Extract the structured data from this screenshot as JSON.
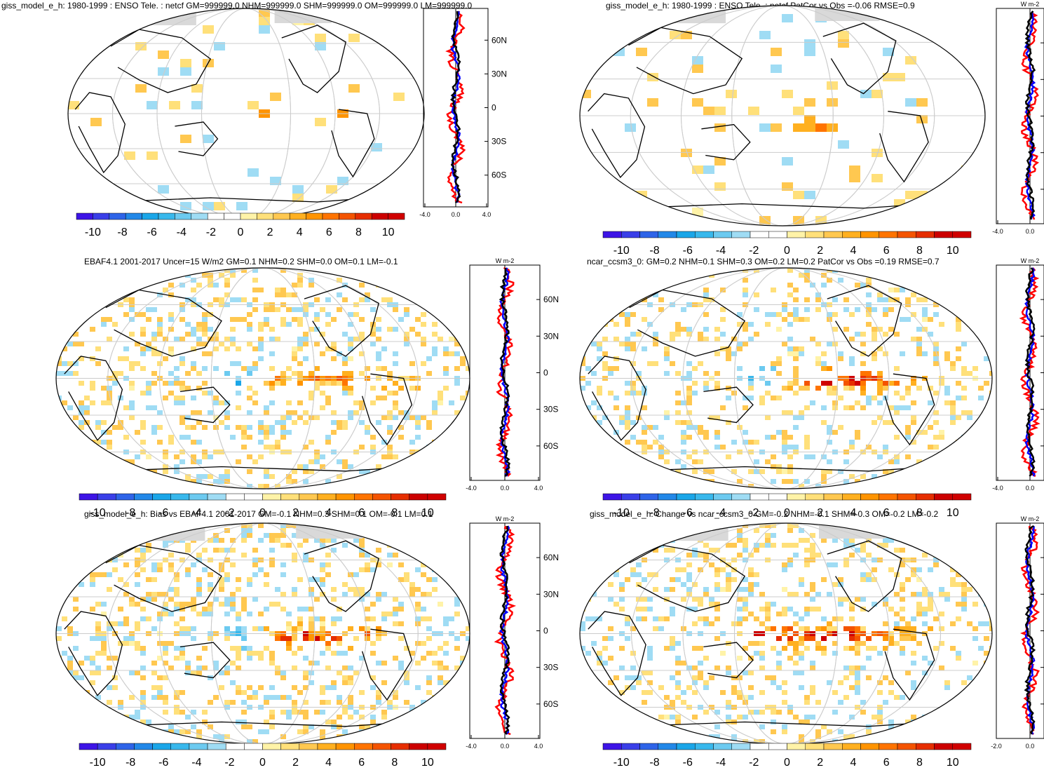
{
  "colorbar": {
    "colors": [
      "#3d14e6",
      "#3a3fe8",
      "#2e64e8",
      "#2288e8",
      "#1aa6e8",
      "#38b8ec",
      "#6ccaf0",
      "#9fdcf4",
      "#ffffff",
      "#ffffff",
      "#fff3a8",
      "#ffe07a",
      "#ffc850",
      "#ffb020",
      "#ff9400",
      "#ff7400",
      "#f45400",
      "#e62e00",
      "#cc0000",
      "#d00000"
    ],
    "labels": [
      "-10",
      "-8",
      "-6",
      "-4",
      "-2",
      "0",
      "2",
      "4",
      "6",
      "8",
      "10"
    ]
  },
  "lat_labels": [
    "60N",
    "30N",
    "0",
    "30S",
    "60S"
  ],
  "zonal_unit": "W m-2",
  "panels": [
    {
      "id": "model-enso",
      "title": "giss_model_e_h: 1980-1999 : ENSO Tele. : netcf GM=999999.0 NHM=999999.0 SHM=999999.0 OM=999999.0 LM=999999.0",
      "x_labels": [
        "-4.0",
        "0.0",
        "4.0"
      ],
      "show_unit": false
    },
    {
      "id": "model-enso-patcor",
      "title": "giss_model_e_h: 1980-1999 : ENSO Tele. : netcf PatCor vs Obs =-0.06 RMSE=0.9",
      "x_labels": [
        "-4.0",
        "0.0"
      ],
      "show_unit": true
    },
    {
      "id": "ebaf-obs",
      "title": "EBAF4.1 2001-2017 Uncer=15 W/m2 GM=0.1 NHM=0.2 SHM=0.0 OM=0.1 LM=-0.1",
      "x_labels": [
        "-4.0",
        "0.0",
        "4.0"
      ],
      "show_unit": true
    },
    {
      "id": "ncar-ccsm3",
      "title": "ncar_ccsm3_0: GM=0.2 NHM=0.1 SHM=0.3 OM=0.2 LM=0.2 PatCor vs Obs =0.19 RMSE=0.7",
      "x_labels": [
        "-4.0",
        "0.0"
      ],
      "show_unit": true
    },
    {
      "id": "model-bias",
      "title": "giss_model_e_h: Bias vs EBAF4.1 2001-2017 GM=-0.1 NHM=0.3 SHM=0.1 OM=-0.1 LM=0.1",
      "x_labels": [
        "-4.0",
        "0.0",
        "4.0"
      ],
      "show_unit": true
    },
    {
      "id": "model-change",
      "title": "giss_model_e_h: Change vs ncar_ccsm3_0 GM=-0.2 NHM=-0.1 SHM=-0.3 OM=-0.2 LM=-0.2",
      "x_labels": [
        "-2.0",
        "0.0"
      ],
      "show_unit": true
    }
  ]
}
